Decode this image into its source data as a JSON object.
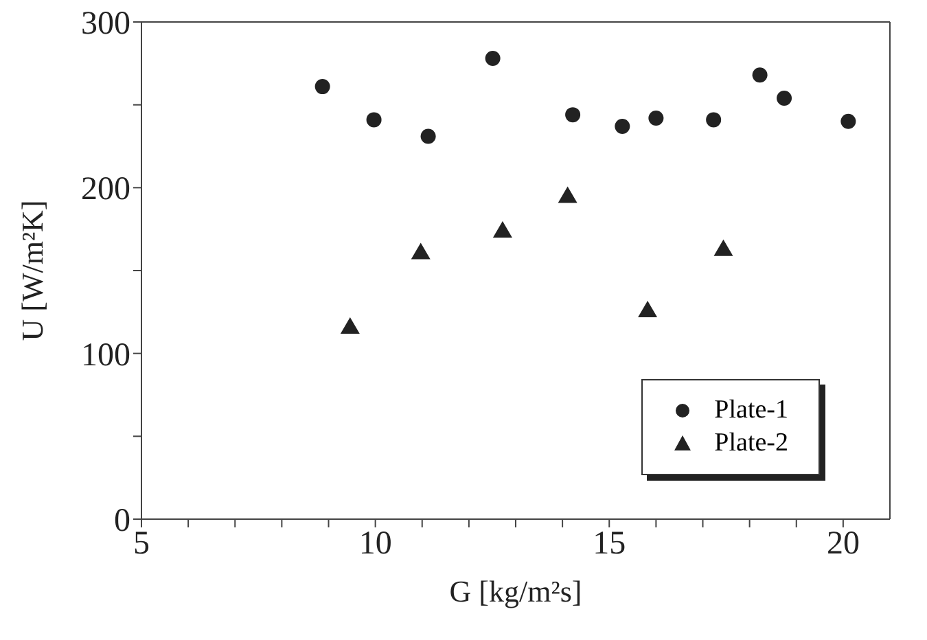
{
  "chart_data": {
    "type": "scatter",
    "xlabel": "G [kg/m²s]",
    "ylabel": "U [W/m²K]",
    "xlim": [
      5,
      21
    ],
    "xticks": [
      5,
      {
        "value": 6,
        "label": null
      },
      {
        "value": 7,
        "label": null
      },
      {
        "value": 8,
        "label": null
      },
      {
        "value": 9,
        "label": null
      },
      10,
      {
        "value": 11,
        "label": null
      },
      {
        "value": 12,
        "label": null
      },
      {
        "value": 13,
        "label": null
      },
      {
        "value": 14,
        "label": null
      },
      15,
      {
        "value": 16,
        "label": null
      },
      {
        "value": 17,
        "label": null
      },
      {
        "value": 18,
        "label": null
      },
      {
        "value": 19,
        "label": null
      },
      20
    ],
    "ylim": [
      0,
      300
    ],
    "yticks": [
      0,
      {
        "value": 50,
        "label": null
      },
      100,
      {
        "value": 150,
        "label": null
      },
      200,
      {
        "value": 250,
        "label": null
      },
      300
    ],
    "grid": false,
    "legend": "bottom right",
    "series": [
      {
        "name": "Plate-1",
        "color": "#222222",
        "marker": "circle",
        "x": [
          8.87,
          9.97,
          11.13,
          12.51,
          14.22,
          15.28,
          16.0,
          17.23,
          18.22,
          18.74,
          20.11
        ],
        "values": [
          261,
          241,
          231,
          278,
          244,
          237,
          242,
          241,
          268,
          254,
          240
        ]
      },
      {
        "name": "Plate-2",
        "color": "#222222",
        "marker": "triangle",
        "x": [
          9.46,
          10.97,
          12.72,
          14.11,
          15.82,
          17.44
        ],
        "values": [
          116,
          161,
          174,
          195,
          126,
          163
        ]
      }
    ]
  }
}
